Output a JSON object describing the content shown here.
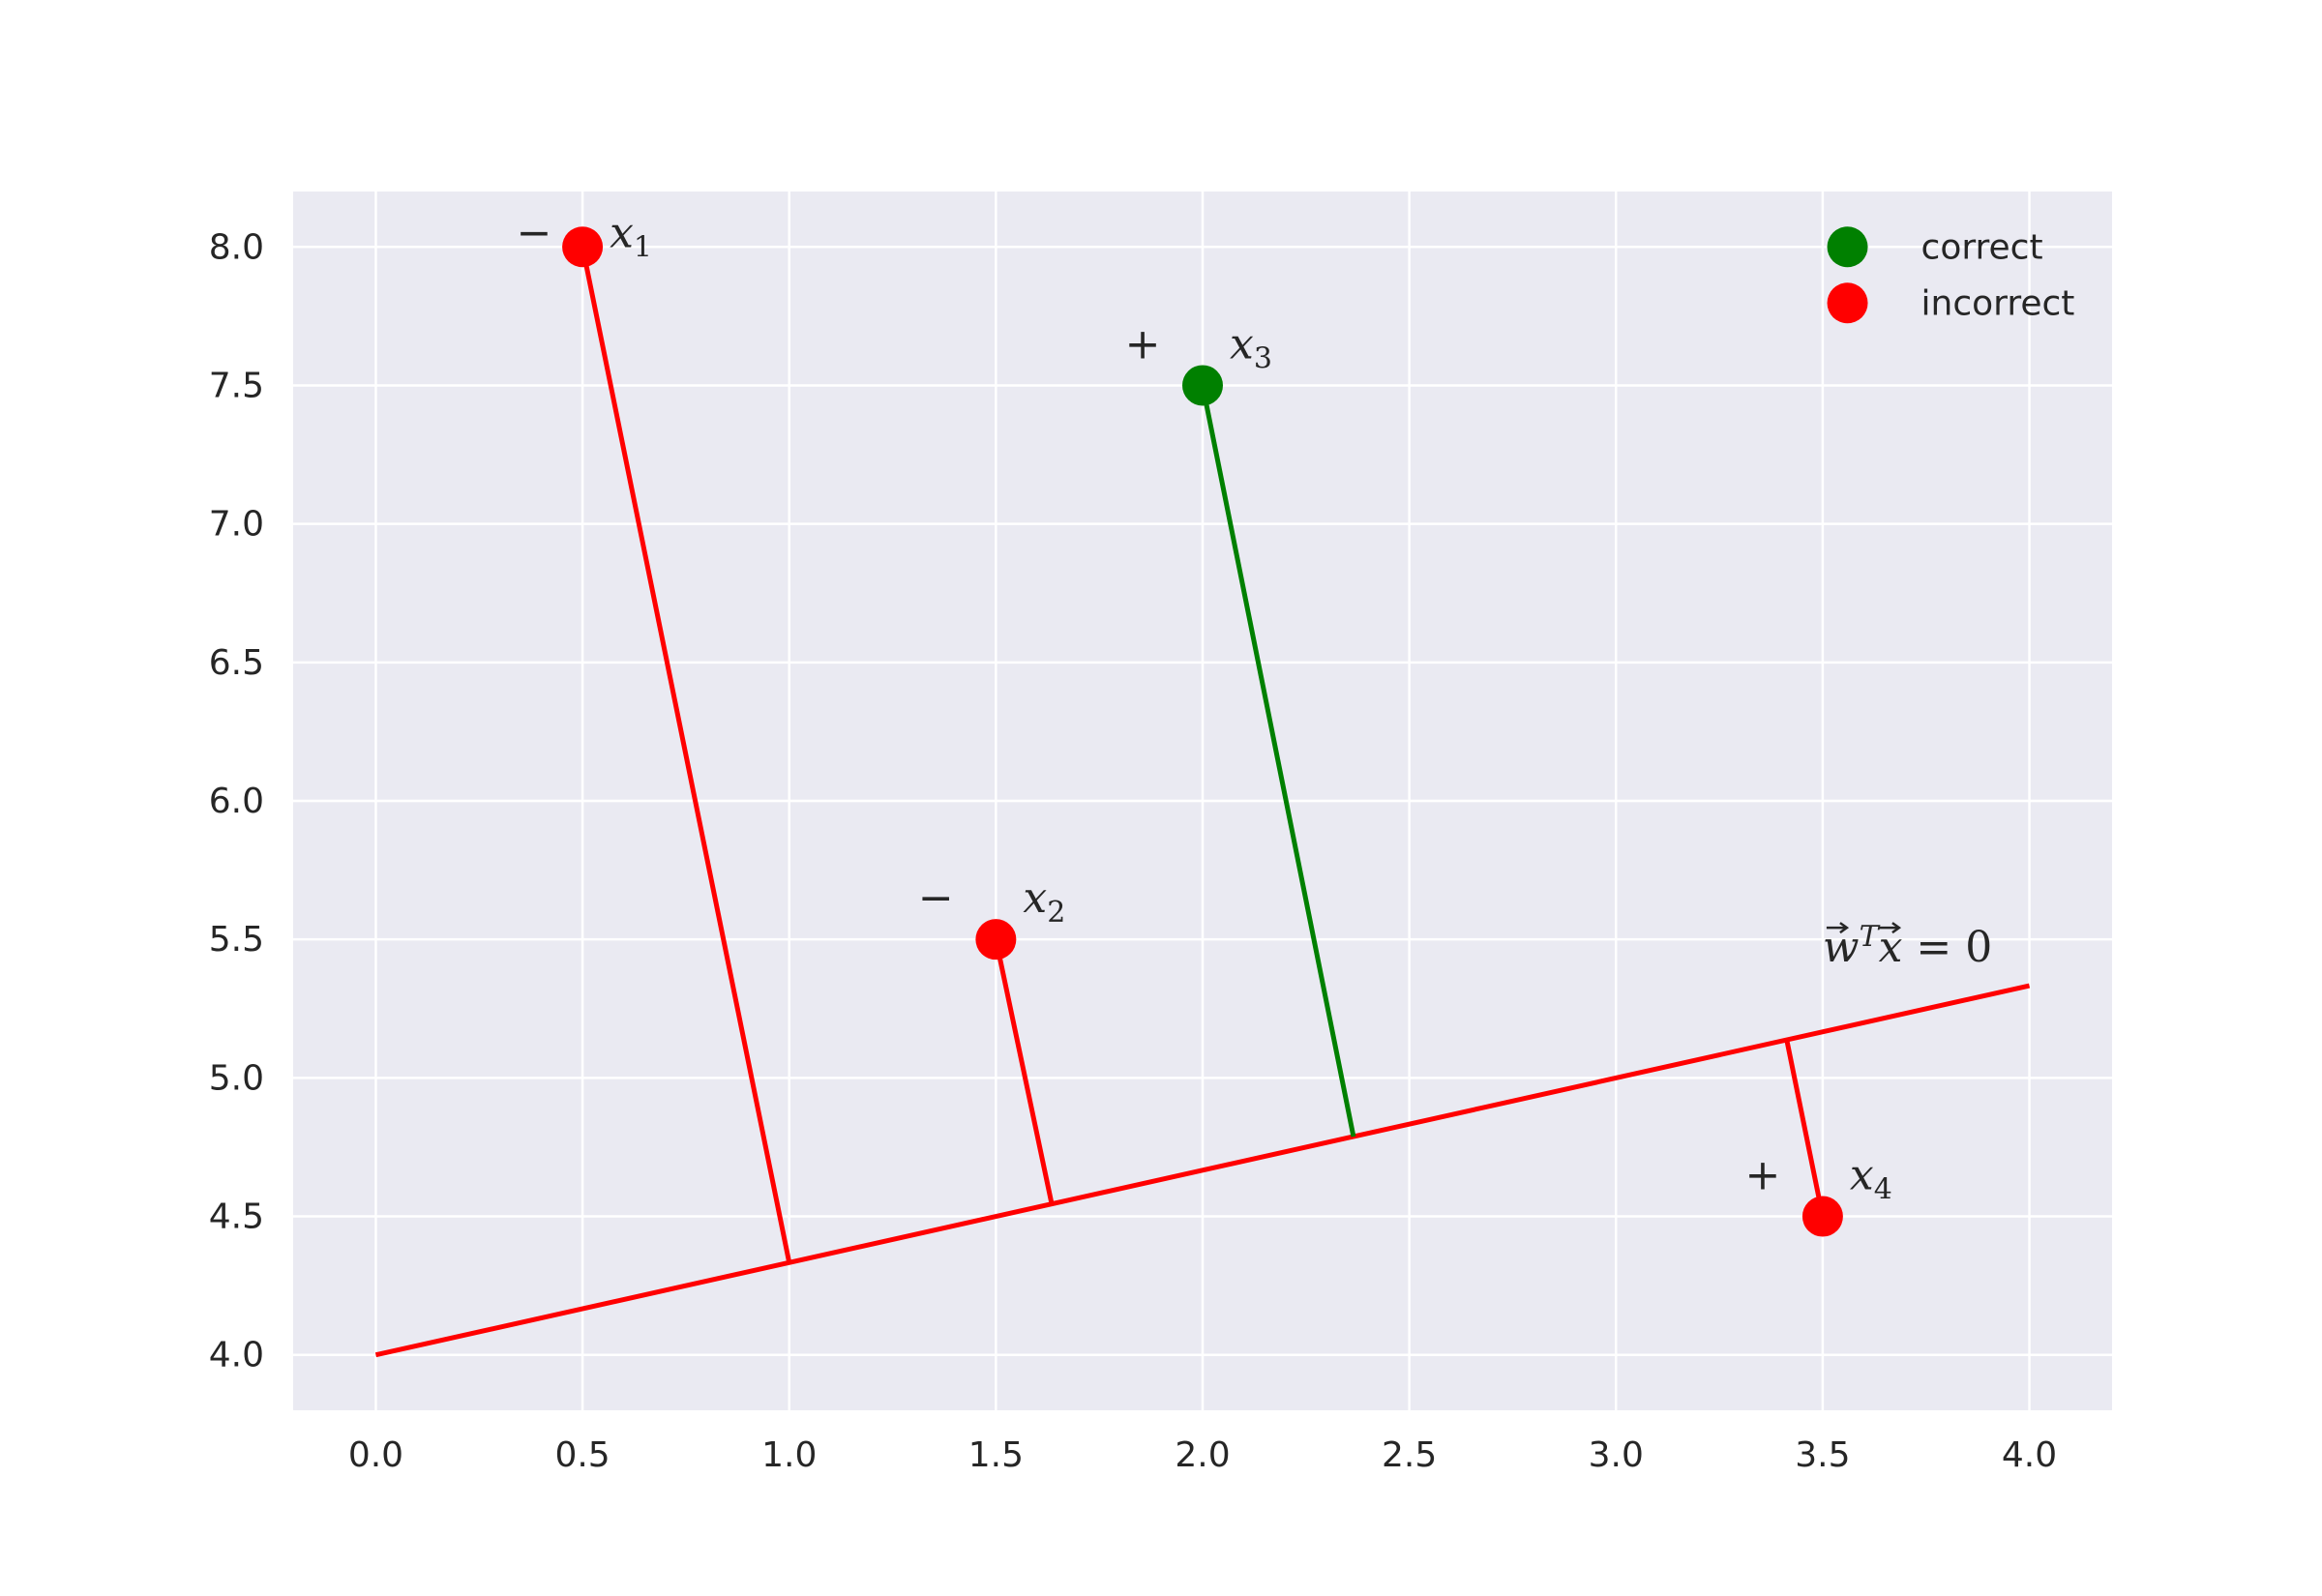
{
  "chart_data": {
    "type": "scatter",
    "title": "",
    "xlabel": "",
    "ylabel": "",
    "xlim": [
      -0.2,
      4.2
    ],
    "ylim": [
      3.8,
      8.2
    ],
    "xticks": [
      "0.0",
      "0.5",
      "1.0",
      "1.5",
      "2.0",
      "2.5",
      "3.0",
      "3.5",
      "4.0"
    ],
    "yticks": [
      "4.0",
      "4.5",
      "5.0",
      "5.5",
      "6.0",
      "6.5",
      "7.0",
      "7.5",
      "8.0"
    ],
    "grid": true,
    "legend_position": "top-right",
    "colors": {
      "correct": "#008000",
      "incorrect": "#ff0000",
      "background": "#eaeaf2",
      "grid": "#ffffff"
    },
    "series": [
      {
        "name": "correct",
        "color": "#008000"
      },
      {
        "name": "incorrect",
        "color": "#ff0000"
      }
    ],
    "points": [
      {
        "name": "x",
        "sub": "1",
        "x": 0.5,
        "y": 8.0,
        "sign": "−",
        "class": "incorrect",
        "foot": [
          1.0,
          4.333
        ]
      },
      {
        "name": "x",
        "sub": "2",
        "x": 1.5,
        "y": 5.5,
        "sign": "−",
        "class": "incorrect",
        "foot": [
          1.635,
          4.545
        ]
      },
      {
        "name": "x",
        "sub": "3",
        "x": 2.0,
        "y": 7.5,
        "sign": "+",
        "class": "correct",
        "foot": [
          2.365,
          4.788
        ]
      },
      {
        "name": "x",
        "sub": "4",
        "x": 3.5,
        "y": 4.5,
        "sign": "+",
        "class": "incorrect",
        "foot": [
          3.413,
          5.138
        ]
      }
    ],
    "boundary": {
      "x": [
        0.0,
        4.0
      ],
      "y": [
        4.0,
        5.333
      ],
      "color": "#ff0000",
      "label_main": "w",
      "label_sup": "T",
      "label_x": "x",
      "label_eq": "= 0"
    }
  }
}
